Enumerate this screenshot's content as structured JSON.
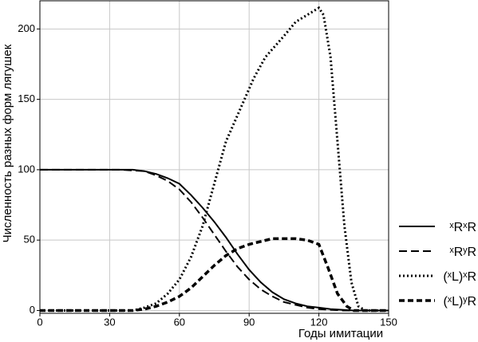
{
  "chart_data": {
    "type": "line",
    "x_label": "Годы имитации",
    "y_label": "Численность разных форм лягушек",
    "xlim": [
      0,
      150
    ],
    "ylim": [
      -2,
      220
    ],
    "xticks": [
      0,
      30,
      60,
      90,
      120,
      150
    ],
    "yticks": [
      0,
      50,
      100,
      150,
      200
    ],
    "grid": true,
    "legend": "right",
    "series": [
      {
        "name": "ˣRˣR",
        "color": "#000000",
        "dash": "solid",
        "x": [
          0,
          10,
          20,
          30,
          40,
          45,
          50,
          55,
          60,
          65,
          70,
          75,
          80,
          85,
          90,
          95,
          100,
          105,
          110,
          115,
          120,
          125,
          130,
          135,
          140,
          150
        ],
        "values": [
          100,
          100,
          100,
          100,
          100,
          99,
          97,
          94,
          90,
          82,
          73,
          63,
          52,
          40,
          29,
          20,
          13,
          8,
          5,
          3,
          2,
          1,
          0.5,
          0,
          0,
          0
        ]
      },
      {
        "name": "ˣRʸR",
        "color": "#000000",
        "dash": "dashed",
        "x": [
          0,
          10,
          20,
          30,
          35,
          45,
          50,
          55,
          60,
          65,
          70,
          75,
          80,
          85,
          90,
          95,
          100,
          105,
          110,
          115,
          120,
          130,
          140,
          150
        ],
        "values": [
          100,
          100,
          100,
          100,
          100,
          99,
          96,
          92,
          86,
          77,
          66,
          54,
          42,
          31,
          22,
          15,
          10,
          6,
          4,
          2,
          1,
          0,
          0,
          0
        ]
      },
      {
        "name": "(ˣL)ˣR",
        "color": "#000000",
        "dash": "dotted",
        "x": [
          0,
          10,
          20,
          30,
          40,
          45,
          50,
          55,
          60,
          65,
          70,
          75,
          80,
          88,
          92,
          97,
          105,
          110,
          118,
          120,
          122,
          125,
          128,
          131,
          134,
          137,
          140,
          150
        ],
        "values": [
          0,
          0,
          0,
          0,
          0,
          2,
          5,
          12,
          22,
          38,
          60,
          90,
          120,
          150,
          165,
          180,
          195,
          205,
          213,
          215,
          210,
          180,
          120,
          60,
          20,
          3,
          0,
          0
        ]
      },
      {
        "name": "(ˣL)ʸR",
        "color": "#000000",
        "dash": "thick-dashed",
        "x": [
          0,
          10,
          20,
          30,
          40,
          45,
          50,
          55,
          60,
          65,
          70,
          75,
          80,
          85,
          90,
          95,
          100,
          105,
          110,
          115,
          120,
          124,
          128,
          132,
          135,
          150
        ],
        "values": [
          0,
          0,
          0,
          0,
          0,
          1,
          3,
          6,
          10,
          16,
          24,
          32,
          39,
          44,
          47,
          49,
          51,
          51,
          51,
          50,
          47,
          30,
          12,
          3,
          0,
          0
        ]
      }
    ]
  }
}
